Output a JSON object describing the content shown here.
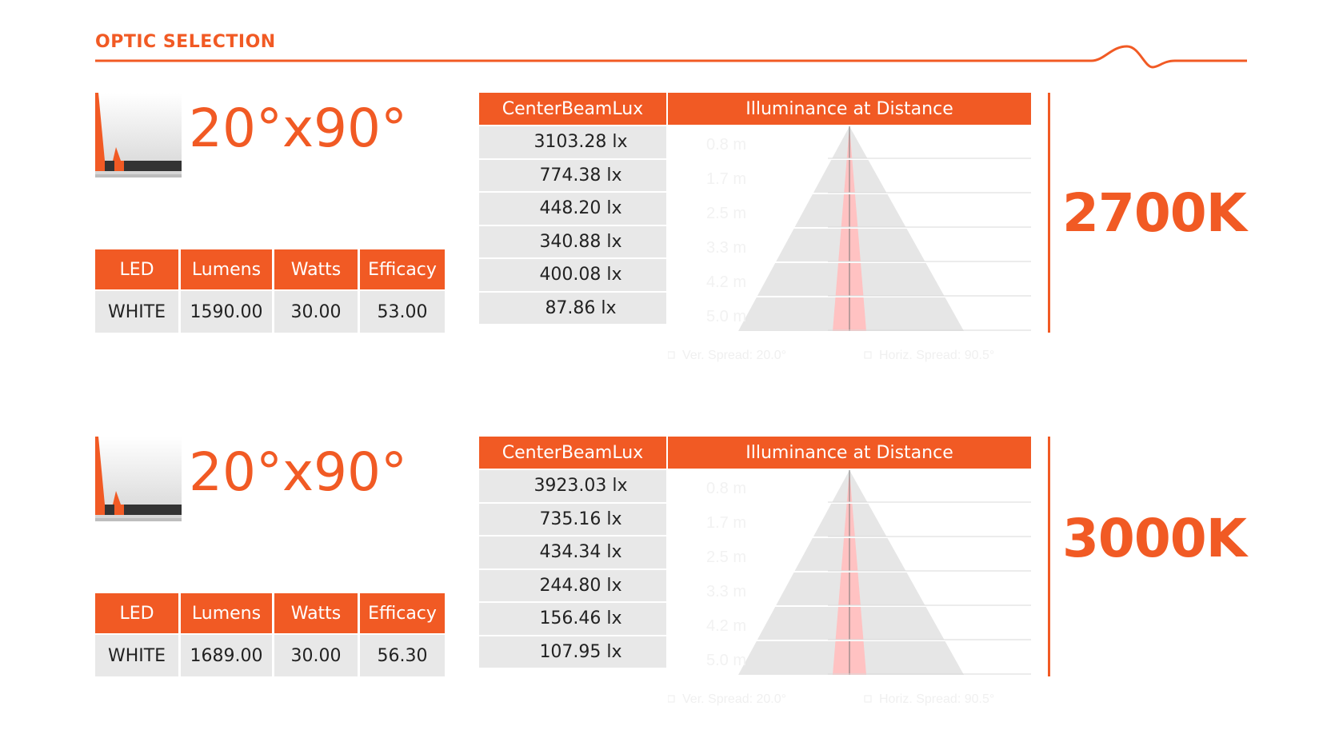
{
  "page": {
    "title": "OPTIC SELECTION"
  },
  "colors": {
    "accent": "#f15a24",
    "cell_bg": "#e8e8e8",
    "beam": "#ffc2c2",
    "cone": "#e6e6e6"
  },
  "headers": {
    "specs": [
      "LED",
      "Lumens",
      "Watts",
      "Efficacy"
    ],
    "lux": "CenterBeamLux",
    "distance": "Illuminance at Distance"
  },
  "sections": [
    {
      "optic": "20°x90°",
      "specs": {
        "led": "WHITE",
        "lumens": "1590.00",
        "watts": "30.00",
        "efficacy": "53.00"
      },
      "lux": [
        "3103.28 lx",
        "774.38 lx",
        "448.20 lx",
        "340.88 lx",
        "400.08 lx",
        "87.86 lx"
      ],
      "distances": [
        "0.8 m",
        "1.7 m",
        "2.5 m",
        "3.3 m",
        "4.2 m",
        "5.0 m"
      ],
      "legend": {
        "ver": "Ver. Spread: 20.0°",
        "hor": "Horiz. Spread: 90.5°"
      },
      "temp": "2700K"
    },
    {
      "optic": "20°x90°",
      "specs": {
        "led": "WHITE",
        "lumens": "1689.00",
        "watts": "30.00",
        "efficacy": "56.30"
      },
      "lux": [
        "3923.03 lx",
        "735.16 lx",
        "434.34 lx",
        "244.80 lx",
        "156.46 lx",
        "107.95 lx"
      ],
      "distances": [
        "0.8 m",
        "1.7 m",
        "2.5 m",
        "3.3 m",
        "4.2 m",
        "5.0 m"
      ],
      "legend": {
        "ver": "Ver. Spread: 20.0°",
        "hor": "Horiz. Spread: 90.5°"
      },
      "temp": "3000K"
    }
  ]
}
